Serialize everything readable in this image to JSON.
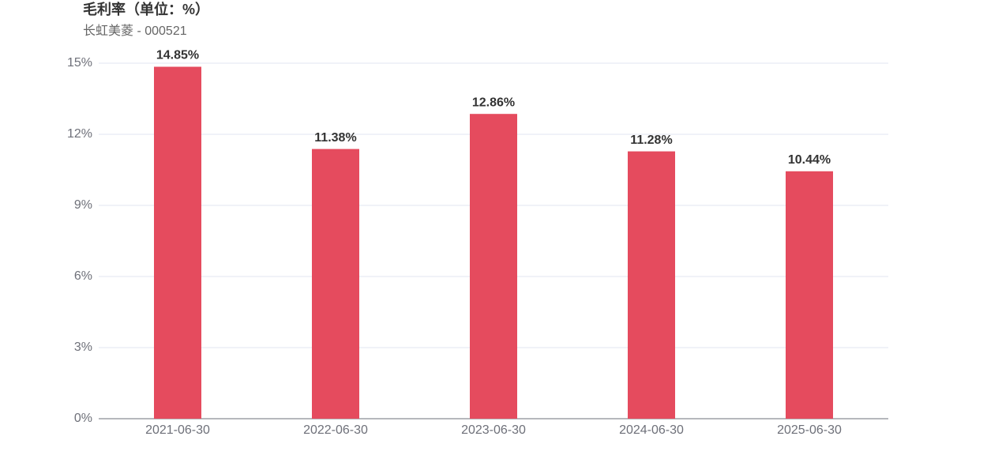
{
  "chart_data": {
    "type": "bar",
    "title": "毛利率（单位：%）",
    "subtitle": "长虹美菱 - 000521",
    "categories": [
      "2021-06-30",
      "2022-06-30",
      "2023-06-30",
      "2024-06-30",
      "2025-06-30"
    ],
    "values": [
      14.85,
      11.38,
      12.86,
      11.28,
      10.44
    ],
    "value_labels": [
      "14.85%",
      "11.38%",
      "12.86%",
      "11.28%",
      "10.44%"
    ],
    "color": "#e54b5e",
    "ylim": [
      0,
      15
    ],
    "yticks": [
      {
        "value": 0,
        "label": "0%"
      },
      {
        "value": 3,
        "label": "3%"
      },
      {
        "value": 6,
        "label": "6%"
      },
      {
        "value": 9,
        "label": "9%"
      },
      {
        "value": 12,
        "label": "12%"
      },
      {
        "value": 15,
        "label": "15%"
      }
    ],
    "grid": true
  }
}
